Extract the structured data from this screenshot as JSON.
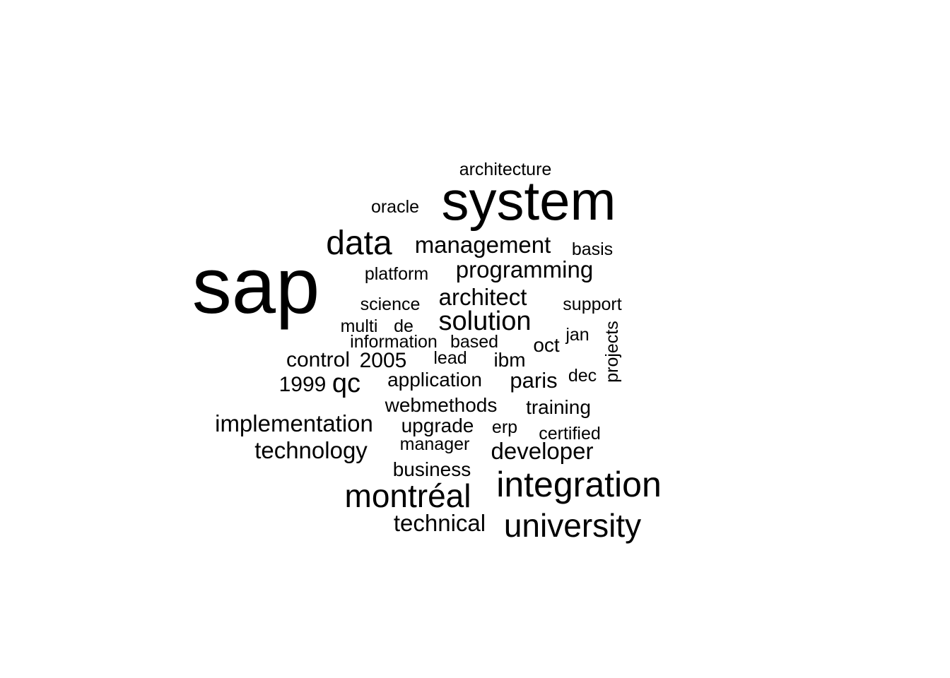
{
  "chart_data": {
    "type": "wordcloud",
    "text_color": "#000000",
    "background": "#ffffff",
    "words": [
      {
        "text": "sap",
        "weight": 10
      },
      {
        "text": "system",
        "weight": 7.5
      },
      {
        "text": "integration",
        "weight": 5
      },
      {
        "text": "data",
        "weight": 4.5
      },
      {
        "text": "montréal",
        "weight": 4.5
      },
      {
        "text": "university",
        "weight": 4.5
      },
      {
        "text": "solution",
        "weight": 3.5
      },
      {
        "text": "management",
        "weight": 3.3
      },
      {
        "text": "programming",
        "weight": 3.3
      },
      {
        "text": "architect",
        "weight": 3.3
      },
      {
        "text": "implementation",
        "weight": 3.3
      },
      {
        "text": "technology",
        "weight": 3.3
      },
      {
        "text": "developer",
        "weight": 3.3
      },
      {
        "text": "technical",
        "weight": 3.3
      },
      {
        "text": "qc",
        "weight": 3.3
      },
      {
        "text": "paris",
        "weight": 3
      },
      {
        "text": "2005",
        "weight": 3
      },
      {
        "text": "control",
        "weight": 3
      },
      {
        "text": "application",
        "weight": 2.8
      },
      {
        "text": "ibm",
        "weight": 2.8
      },
      {
        "text": "oct",
        "weight": 2.8
      },
      {
        "text": "webmethods",
        "weight": 2.8
      },
      {
        "text": "training",
        "weight": 2.8
      },
      {
        "text": "upgrade",
        "weight": 2.8
      },
      {
        "text": "business",
        "weight": 2.8
      },
      {
        "text": "1999",
        "weight": 2.8
      },
      {
        "text": "architecture",
        "weight": 2.5
      },
      {
        "text": "oracle",
        "weight": 2.5
      },
      {
        "text": "basis",
        "weight": 2.5
      },
      {
        "text": "platform",
        "weight": 2.5
      },
      {
        "text": "science",
        "weight": 2.5
      },
      {
        "text": "support",
        "weight": 2.5
      },
      {
        "text": "multi",
        "weight": 2.5
      },
      {
        "text": "de",
        "weight": 2.5
      },
      {
        "text": "jan",
        "weight": 2.5
      },
      {
        "text": "projects",
        "weight": 2.5
      },
      {
        "text": "information",
        "weight": 2.5
      },
      {
        "text": "based",
        "weight": 2.5
      },
      {
        "text": "lead",
        "weight": 2.5
      },
      {
        "text": "dec",
        "weight": 2.5
      },
      {
        "text": "erp",
        "weight": 2.5
      },
      {
        "text": "certified",
        "weight": 2.5
      },
      {
        "text": "manager",
        "weight": 2.5
      }
    ]
  }
}
